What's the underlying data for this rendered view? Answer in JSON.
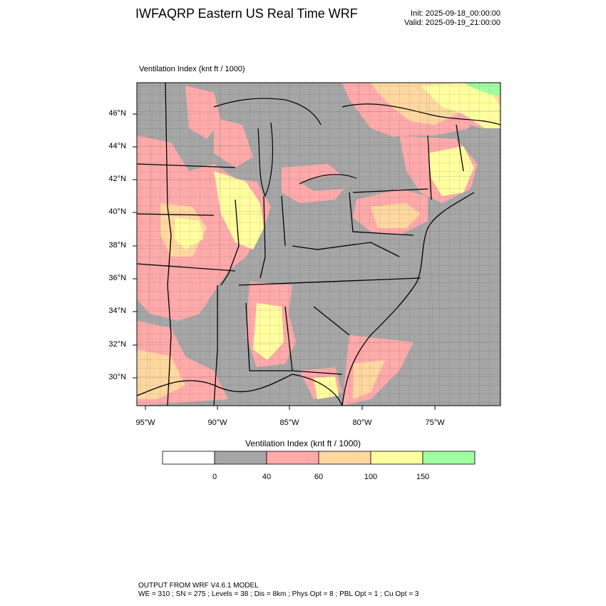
{
  "header": {
    "title": "IWFAQRP Eastern US Real Time WRF",
    "init": "Init: 2025-09-18_00:00:00",
    "valid": "Valid: 2025-09-19_21:00:00"
  },
  "map": {
    "variable_label": "Ventilation Index   (knt ft / 1000)",
    "lat_labels": [
      "46°N",
      "44°N",
      "42°N",
      "40°N",
      "38°N",
      "36°N",
      "34°N",
      "32°N",
      "30°N"
    ],
    "lon_labels": [
      "95°W",
      "90°W",
      "85°W",
      "80°W",
      "75°W"
    ],
    "colors": {
      "water": "#a6a6a6",
      "land_low": "#a6a6a6",
      "pink": "#ffaaaa",
      "orange": "#ffd8a0",
      "yellow": "#ffffa0",
      "green": "#a0ffa0"
    }
  },
  "colorbar": {
    "title": "Ventilation Index  (knt ft / 1000)",
    "bins": [
      {
        "color": "#ffffff"
      },
      {
        "color": "#a6a6a6"
      },
      {
        "color": "#ffaaaa"
      },
      {
        "color": "#ffd8a0"
      },
      {
        "color": "#ffffa0"
      },
      {
        "color": "#a0ffa0"
      }
    ],
    "tick_labels": [
      "0",
      "40",
      "60",
      "100",
      "150"
    ]
  },
  "footer": {
    "line1": "OUTPUT FROM WRF V4.6.1 MODEL",
    "line2": "WE = 310 ; SN = 275 ; Levels = 38 ; Dis = 8km ; Phys Opt = 8 ; PBL Opt = 1 ; Cu Opt = 3"
  }
}
